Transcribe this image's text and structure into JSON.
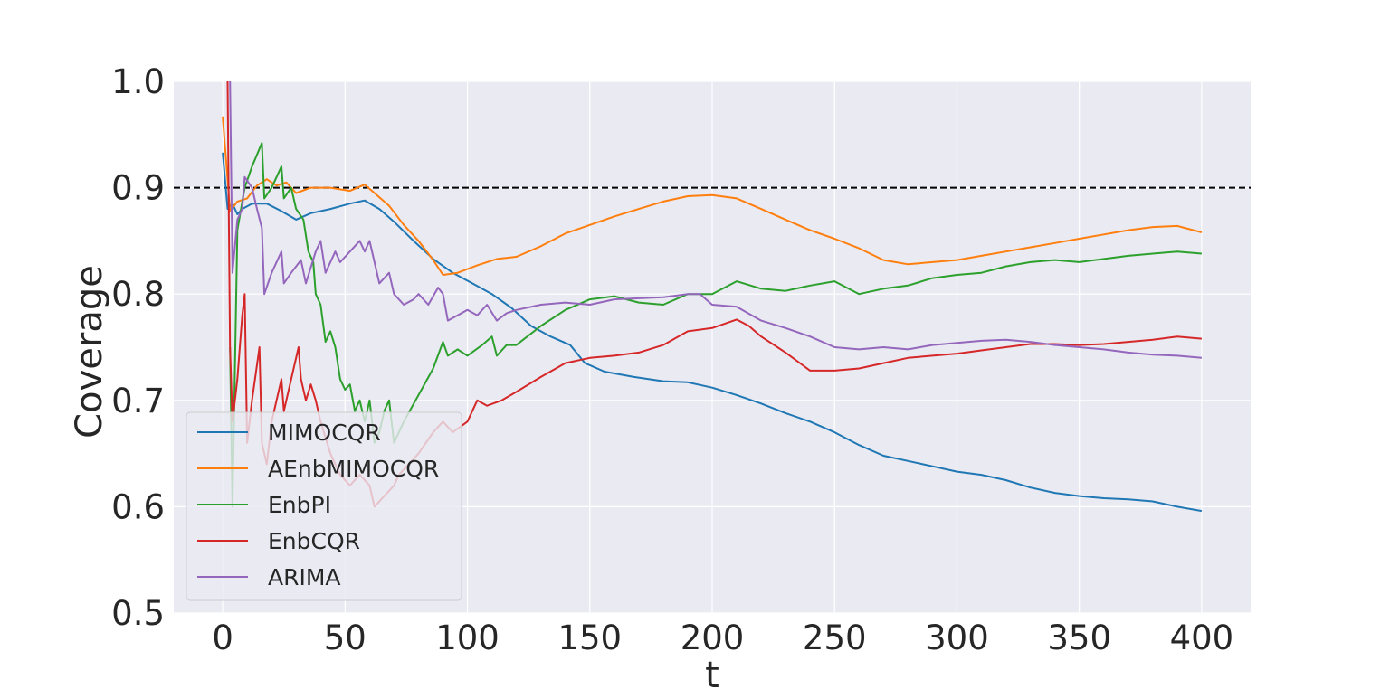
{
  "chart_data": {
    "type": "line",
    "xlabel": "t",
    "ylabel": "Coverage",
    "xlim": [
      -20,
      420
    ],
    "ylim": [
      0.5,
      1.0
    ],
    "xticks": [
      0,
      50,
      100,
      150,
      200,
      250,
      300,
      350,
      400
    ],
    "xtick_labels": [
      "0",
      "50",
      "100",
      "150",
      "200",
      "250",
      "300",
      "350",
      "400"
    ],
    "yticks": [
      0.5,
      0.6,
      0.7,
      0.8,
      0.9,
      1.0
    ],
    "ytick_labels": [
      "0.5",
      "0.6",
      "0.7",
      "0.8",
      "0.9",
      "1.0"
    ],
    "grid": true,
    "legend_position": "lower-left",
    "reference_line": {
      "y": 0.9,
      "style": "dashed",
      "color": "#000000"
    },
    "colors": {
      "background": "#eaeaf2",
      "grid": "#ffffff"
    },
    "series": [
      {
        "name": "MIMOCQR",
        "color": "#1f77b4",
        "points": [
          [
            0,
            0.933
          ],
          [
            2,
            0.88
          ],
          [
            4,
            0.885
          ],
          [
            6,
            0.875
          ],
          [
            8,
            0.88
          ],
          [
            12,
            0.885
          ],
          [
            18,
            0.885
          ],
          [
            24,
            0.878
          ],
          [
            30,
            0.87
          ],
          [
            36,
            0.876
          ],
          [
            44,
            0.88
          ],
          [
            52,
            0.885
          ],
          [
            58,
            0.888
          ],
          [
            64,
            0.88
          ],
          [
            70,
            0.868
          ],
          [
            78,
            0.85
          ],
          [
            86,
            0.833
          ],
          [
            94,
            0.82
          ],
          [
            102,
            0.81
          ],
          [
            110,
            0.8
          ],
          [
            118,
            0.787
          ],
          [
            126,
            0.77
          ],
          [
            134,
            0.76
          ],
          [
            142,
            0.752
          ],
          [
            148,
            0.735
          ],
          [
            156,
            0.727
          ],
          [
            168,
            0.722
          ],
          [
            180,
            0.718
          ],
          [
            190,
            0.717
          ],
          [
            200,
            0.712
          ],
          [
            210,
            0.705
          ],
          [
            220,
            0.697
          ],
          [
            230,
            0.688
          ],
          [
            240,
            0.68
          ],
          [
            250,
            0.67
          ],
          [
            260,
            0.658
          ],
          [
            270,
            0.648
          ],
          [
            280,
            0.643
          ],
          [
            290,
            0.638
          ],
          [
            300,
            0.633
          ],
          [
            310,
            0.63
          ],
          [
            320,
            0.625
          ],
          [
            330,
            0.618
          ],
          [
            340,
            0.613
          ],
          [
            350,
            0.61
          ],
          [
            360,
            0.608
          ],
          [
            370,
            0.607
          ],
          [
            380,
            0.605
          ],
          [
            390,
            0.6
          ],
          [
            400,
            0.596
          ]
        ]
      },
      {
        "name": "AEnbMIMOCQR",
        "color": "#ff7f0e",
        "points": [
          [
            0,
            0.967
          ],
          [
            3,
            0.878
          ],
          [
            6,
            0.887
          ],
          [
            10,
            0.89
          ],
          [
            14,
            0.902
          ],
          [
            18,
            0.908
          ],
          [
            22,
            0.902
          ],
          [
            26,
            0.905
          ],
          [
            30,
            0.895
          ],
          [
            36,
            0.9
          ],
          [
            44,
            0.9
          ],
          [
            52,
            0.897
          ],
          [
            58,
            0.903
          ],
          [
            62,
            0.895
          ],
          [
            68,
            0.883
          ],
          [
            74,
            0.865
          ],
          [
            80,
            0.85
          ],
          [
            86,
            0.832
          ],
          [
            90,
            0.818
          ],
          [
            96,
            0.82
          ],
          [
            104,
            0.827
          ],
          [
            112,
            0.833
          ],
          [
            120,
            0.835
          ],
          [
            130,
            0.845
          ],
          [
            140,
            0.857
          ],
          [
            150,
            0.865
          ],
          [
            160,
            0.873
          ],
          [
            170,
            0.88
          ],
          [
            180,
            0.887
          ],
          [
            190,
            0.892
          ],
          [
            200,
            0.893
          ],
          [
            210,
            0.89
          ],
          [
            220,
            0.88
          ],
          [
            230,
            0.87
          ],
          [
            240,
            0.86
          ],
          [
            250,
            0.852
          ],
          [
            260,
            0.843
          ],
          [
            270,
            0.832
          ],
          [
            280,
            0.828
          ],
          [
            290,
            0.83
          ],
          [
            300,
            0.832
          ],
          [
            310,
            0.836
          ],
          [
            320,
            0.84
          ],
          [
            330,
            0.844
          ],
          [
            340,
            0.848
          ],
          [
            350,
            0.852
          ],
          [
            360,
            0.856
          ],
          [
            370,
            0.86
          ],
          [
            380,
            0.863
          ],
          [
            390,
            0.864
          ],
          [
            400,
            0.858
          ]
        ]
      },
      {
        "name": "EnbPI",
        "color": "#2ca02c",
        "points": [
          [
            3,
            0.75
          ],
          [
            4,
            0.6
          ],
          [
            6,
            0.86
          ],
          [
            9,
            0.9
          ],
          [
            12,
            0.92
          ],
          [
            16,
            0.942
          ],
          [
            17,
            0.89
          ],
          [
            20,
            0.9
          ],
          [
            24,
            0.92
          ],
          [
            25,
            0.89
          ],
          [
            28,
            0.9
          ],
          [
            30,
            0.88
          ],
          [
            33,
            0.87
          ],
          [
            35,
            0.84
          ],
          [
            37,
            0.83
          ],
          [
            38,
            0.8
          ],
          [
            40,
            0.79
          ],
          [
            42,
            0.755
          ],
          [
            44,
            0.765
          ],
          [
            46,
            0.75
          ],
          [
            48,
            0.72
          ],
          [
            50,
            0.71
          ],
          [
            52,
            0.715
          ],
          [
            54,
            0.69
          ],
          [
            56,
            0.7
          ],
          [
            58,
            0.68
          ],
          [
            60,
            0.7
          ],
          [
            62,
            0.66
          ],
          [
            64,
            0.67
          ],
          [
            66,
            0.69
          ],
          [
            68,
            0.7
          ],
          [
            70,
            0.66
          ],
          [
            74,
            0.68
          ],
          [
            80,
            0.705
          ],
          [
            86,
            0.73
          ],
          [
            90,
            0.755
          ],
          [
            92,
            0.742
          ],
          [
            96,
            0.748
          ],
          [
            100,
            0.742
          ],
          [
            106,
            0.752
          ],
          [
            110,
            0.76
          ],
          [
            112,
            0.742
          ],
          [
            116,
            0.752
          ],
          [
            120,
            0.752
          ],
          [
            130,
            0.77
          ],
          [
            140,
            0.785
          ],
          [
            150,
            0.795
          ],
          [
            160,
            0.798
          ],
          [
            170,
            0.792
          ],
          [
            180,
            0.79
          ],
          [
            190,
            0.8
          ],
          [
            200,
            0.8
          ],
          [
            210,
            0.812
          ],
          [
            220,
            0.805
          ],
          [
            230,
            0.803
          ],
          [
            240,
            0.808
          ],
          [
            250,
            0.812
          ],
          [
            260,
            0.8
          ],
          [
            270,
            0.805
          ],
          [
            280,
            0.808
          ],
          [
            290,
            0.815
          ],
          [
            300,
            0.818
          ],
          [
            310,
            0.82
          ],
          [
            320,
            0.826
          ],
          [
            330,
            0.83
          ],
          [
            340,
            0.832
          ],
          [
            350,
            0.83
          ],
          [
            360,
            0.833
          ],
          [
            370,
            0.836
          ],
          [
            380,
            0.838
          ],
          [
            390,
            0.84
          ],
          [
            400,
            0.838
          ]
        ]
      },
      {
        "name": "EnbCQR",
        "color": "#d62728",
        "points": [
          [
            2,
            1.0
          ],
          [
            3,
            0.75
          ],
          [
            4,
            0.68
          ],
          [
            6,
            0.72
          ],
          [
            8,
            0.78
          ],
          [
            9,
            0.8
          ],
          [
            10,
            0.66
          ],
          [
            12,
            0.7
          ],
          [
            15,
            0.75
          ],
          [
            16,
            0.66
          ],
          [
            18,
            0.64
          ],
          [
            20,
            0.68
          ],
          [
            22,
            0.7
          ],
          [
            24,
            0.72
          ],
          [
            25,
            0.69
          ],
          [
            28,
            0.72
          ],
          [
            31,
            0.75
          ],
          [
            32,
            0.72
          ],
          [
            34,
            0.7
          ],
          [
            36,
            0.715
          ],
          [
            38,
            0.7
          ],
          [
            40,
            0.68
          ],
          [
            44,
            0.65
          ],
          [
            48,
            0.63
          ],
          [
            52,
            0.62
          ],
          [
            56,
            0.63
          ],
          [
            60,
            0.62
          ],
          [
            62,
            0.6
          ],
          [
            66,
            0.61
          ],
          [
            70,
            0.62
          ],
          [
            72,
            0.63
          ],
          [
            76,
            0.64
          ],
          [
            80,
            0.65
          ],
          [
            86,
            0.67
          ],
          [
            90,
            0.68
          ],
          [
            94,
            0.67
          ],
          [
            100,
            0.68
          ],
          [
            104,
            0.7
          ],
          [
            108,
            0.695
          ],
          [
            114,
            0.7
          ],
          [
            120,
            0.708
          ],
          [
            130,
            0.722
          ],
          [
            140,
            0.735
          ],
          [
            150,
            0.74
          ],
          [
            160,
            0.742
          ],
          [
            170,
            0.745
          ],
          [
            180,
            0.752
          ],
          [
            190,
            0.765
          ],
          [
            200,
            0.768
          ],
          [
            210,
            0.776
          ],
          [
            215,
            0.77
          ],
          [
            220,
            0.76
          ],
          [
            230,
            0.745
          ],
          [
            240,
            0.728
          ],
          [
            250,
            0.728
          ],
          [
            260,
            0.73
          ],
          [
            270,
            0.735
          ],
          [
            280,
            0.74
          ],
          [
            290,
            0.742
          ],
          [
            300,
            0.744
          ],
          [
            310,
            0.747
          ],
          [
            320,
            0.75
          ],
          [
            330,
            0.753
          ],
          [
            340,
            0.753
          ],
          [
            350,
            0.752
          ],
          [
            360,
            0.753
          ],
          [
            370,
            0.755
          ],
          [
            380,
            0.757
          ],
          [
            390,
            0.76
          ],
          [
            400,
            0.758
          ]
        ]
      },
      {
        "name": "ARIMA",
        "color": "#9467bd",
        "points": [
          [
            3,
            1.0
          ],
          [
            4,
            0.82
          ],
          [
            6,
            0.87
          ],
          [
            8,
            0.88
          ],
          [
            9,
            0.91
          ],
          [
            12,
            0.9
          ],
          [
            14,
            0.88
          ],
          [
            16,
            0.862
          ],
          [
            17,
            0.8
          ],
          [
            20,
            0.82
          ],
          [
            24,
            0.84
          ],
          [
            25,
            0.81
          ],
          [
            28,
            0.82
          ],
          [
            32,
            0.832
          ],
          [
            34,
            0.81
          ],
          [
            38,
            0.84
          ],
          [
            40,
            0.85
          ],
          [
            42,
            0.82
          ],
          [
            46,
            0.84
          ],
          [
            48,
            0.83
          ],
          [
            52,
            0.84
          ],
          [
            56,
            0.85
          ],
          [
            58,
            0.84
          ],
          [
            60,
            0.85
          ],
          [
            64,
            0.81
          ],
          [
            68,
            0.82
          ],
          [
            70,
            0.8
          ],
          [
            74,
            0.79
          ],
          [
            78,
            0.795
          ],
          [
            80,
            0.8
          ],
          [
            84,
            0.79
          ],
          [
            88,
            0.806
          ],
          [
            90,
            0.8
          ],
          [
            92,
            0.775
          ],
          [
            96,
            0.78
          ],
          [
            100,
            0.785
          ],
          [
            104,
            0.78
          ],
          [
            108,
            0.79
          ],
          [
            112,
            0.775
          ],
          [
            116,
            0.782
          ],
          [
            120,
            0.785
          ],
          [
            130,
            0.79
          ],
          [
            140,
            0.792
          ],
          [
            150,
            0.79
          ],
          [
            160,
            0.795
          ],
          [
            170,
            0.796
          ],
          [
            180,
            0.797
          ],
          [
            190,
            0.8
          ],
          [
            195,
            0.8
          ],
          [
            200,
            0.79
          ],
          [
            210,
            0.788
          ],
          [
            220,
            0.775
          ],
          [
            230,
            0.768
          ],
          [
            240,
            0.76
          ],
          [
            250,
            0.75
          ],
          [
            260,
            0.748
          ],
          [
            270,
            0.75
          ],
          [
            280,
            0.748
          ],
          [
            290,
            0.752
          ],
          [
            300,
            0.754
          ],
          [
            310,
            0.756
          ],
          [
            320,
            0.757
          ],
          [
            330,
            0.755
          ],
          [
            340,
            0.752
          ],
          [
            350,
            0.75
          ],
          [
            360,
            0.748
          ],
          [
            370,
            0.745
          ],
          [
            380,
            0.743
          ],
          [
            390,
            0.742
          ],
          [
            400,
            0.74
          ]
        ]
      }
    ]
  }
}
